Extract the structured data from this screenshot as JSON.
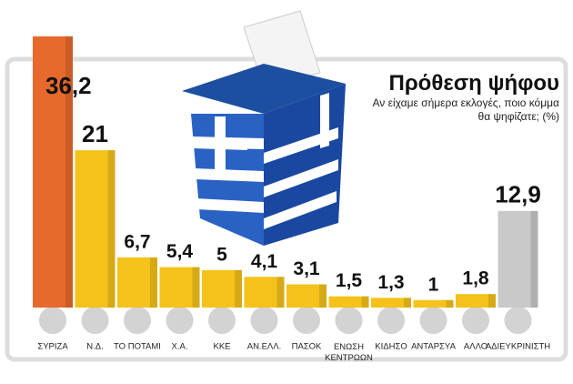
{
  "chart_data": {
    "type": "bar",
    "title": "Πρόθεση ψήφου",
    "subtitle": "Αν είχαμε σήμερα εκλογές, ποιο κόμμα θα ψηφίζατε; (%)",
    "categories": [
      "ΣΥΡΙΖΑ",
      "Ν.Δ.",
      "ΤΟ ΠΟΤΑΜΙ",
      "Χ.Α.",
      "ΚΚΕ",
      "ΑΝ.ΕΛΛ.",
      "ΠΑΣΟΚ",
      "ΕΝΩΣΗ ΚΕΝΤΡΩΩΝ",
      "ΚΙΔΗΣΟ",
      "ΑΝΤΑΡΣΥΑ",
      "ΑΛΛΟ",
      "ΑΔΙΕΥΚΡΙΝΙΣΤΗ"
    ],
    "values": [
      36.2,
      21,
      6.7,
      5.4,
      5,
      4.1,
      3.1,
      1.5,
      1.3,
      1,
      1.8,
      12.9
    ],
    "value_labels": [
      "36,2",
      "21",
      "6,7",
      "5,4",
      "5",
      "4,1",
      "3,1",
      "1,5",
      "1,3",
      "1",
      "1,8",
      "12,9"
    ],
    "colors": [
      "#e8692c",
      "#f4c21a",
      "#f4c21a",
      "#f4c21a",
      "#f4c21a",
      "#f4c21a",
      "#f4c21a",
      "#f4c21a",
      "#f4c21a",
      "#f4c21a",
      "#f4c21a",
      "#c9c9c9"
    ]
  }
}
